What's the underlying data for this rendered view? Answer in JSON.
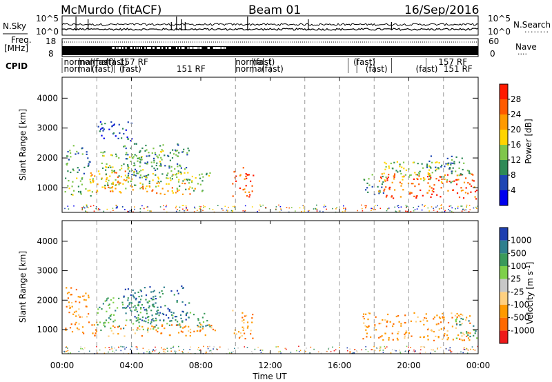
{
  "header": {
    "station": "McMurdo (fitACF)",
    "beam": "Beam 01",
    "date": "16/Sep/2016"
  },
  "left_labels": {
    "nsky": "N.Sky",
    "freq_line1": "Freq.",
    "freq_line2": "[MHz]",
    "cpid": "CPID"
  },
  "right_labels": {
    "nsearch": "N.Search",
    "nave": "Nave"
  },
  "noise_panel": {
    "left_ticks": [
      "10^5",
      "10^0"
    ],
    "right_ticks": [
      "10^5",
      "10^0"
    ]
  },
  "freq_panel": {
    "left_ticks": [
      "18",
      "8"
    ],
    "right_ticks": [
      "60",
      "0"
    ]
  },
  "cpid_labels": {
    "row1": [
      {
        "text": "normal",
        "t": 0.1
      },
      {
        "text": "normal",
        "t": 1.0
      },
      {
        "text": "(fast)",
        "t": 1.75
      },
      {
        "text": "(fast)",
        "t": 2.5
      },
      {
        "text": "157 RF",
        "t": 3.3
      },
      {
        "text": "normal",
        "t": 10.0
      },
      {
        "text": "(fast)",
        "t": 11.0
      },
      {
        "text": "(fast)",
        "t": 16.8
      },
      {
        "text": "157 RF",
        "t": 21.7
      }
    ],
    "row2": [
      {
        "text": "normal",
        "t": 0.1
      },
      {
        "text": "(fast)",
        "t": 1.7
      },
      {
        "text": "(fast)",
        "t": 3.3
      },
      {
        "text": "151 RF",
        "t": 6.6
      },
      {
        "text": "normal",
        "t": 10.0
      },
      {
        "text": "(fast)",
        "t": 11.5
      },
      {
        "text": "(fast)",
        "t": 17.5
      },
      {
        "text": "(fast)",
        "t": 20.4
      },
      {
        "text": "151 RF",
        "t": 22.0
      }
    ]
  },
  "chart_data": [
    {
      "type": "heatmap",
      "name": "power",
      "xlabel": "Time UT",
      "ylabel": "Slant Range [km]",
      "xlim": [
        0,
        24
      ],
      "ylim": [
        180,
        4700
      ],
      "yticks": [
        1000,
        2000,
        3000,
        4000
      ],
      "dashed_vlines": [
        2,
        4,
        10,
        14,
        16,
        18,
        20,
        22
      ],
      "colorbar": {
        "label": "Power [dB]",
        "tick_labels": [
          "4",
          "8",
          "12",
          "16",
          "20",
          "24",
          "28"
        ],
        "colors": [
          "#0000ee",
          "#1e46b4",
          "#2e8a56",
          "#7fc64a",
          "#ffd400",
          "#ff9a00",
          "#ff5a00",
          "#ff1a00"
        ]
      },
      "echo_regions": [
        {
          "t0": 0.1,
          "t1": 1.8,
          "r0": 750,
          "r1": 1400,
          "level": 3
        },
        {
          "t0": 0.2,
          "t1": 1.6,
          "r0": 1500,
          "r1": 2500,
          "level": 2
        },
        {
          "t0": 1.5,
          "t1": 4.2,
          "r0": 850,
          "r1": 1600,
          "level": 5
        },
        {
          "t0": 2.2,
          "t1": 5.8,
          "r0": 1000,
          "r1": 2300,
          "level": 3
        },
        {
          "t0": 3.5,
          "t1": 7.3,
          "r0": 1300,
          "r1": 2500,
          "level": 2
        },
        {
          "t0": 4.5,
          "t1": 7.8,
          "r0": 800,
          "r1": 1200,
          "level": 5
        },
        {
          "t0": 6.0,
          "t1": 8.5,
          "r0": 900,
          "r1": 1600,
          "level": 3
        },
        {
          "t0": 2.0,
          "t1": 4.0,
          "r0": 2600,
          "r1": 3300,
          "level": 1
        },
        {
          "t0": 9.8,
          "t1": 11.0,
          "r0": 700,
          "r1": 1700,
          "level": 6
        },
        {
          "t0": 17.3,
          "t1": 18.5,
          "r0": 800,
          "r1": 1500,
          "level": 2
        },
        {
          "t0": 18.2,
          "t1": 23.9,
          "r0": 650,
          "r1": 1500,
          "level": 6
        },
        {
          "t0": 18.5,
          "t1": 22.5,
          "r0": 1200,
          "r1": 1900,
          "level": 3
        },
        {
          "t0": 21.0,
          "t1": 23.5,
          "r0": 1400,
          "r1": 2100,
          "level": 2
        }
      ]
    },
    {
      "type": "heatmap",
      "name": "velocity",
      "xlabel": "Time UT",
      "ylabel": "Slant Range [km]",
      "xlim": [
        0,
        24
      ],
      "ylim": [
        180,
        4700
      ],
      "yticks": [
        1000,
        2000,
        3000,
        4000
      ],
      "xtick_labels": [
        "00:00",
        "04:00",
        "08:00",
        "12:00",
        "16:00",
        "20:00",
        "00:00"
      ],
      "xticks": [
        0,
        4,
        8,
        12,
        16,
        20,
        24
      ],
      "dashed_vlines": [
        2,
        4,
        10,
        14,
        16,
        18,
        20,
        22
      ],
      "colorbar": {
        "label": "Velocity [m s^-1]",
        "tick_labels": [
          "1000",
          "500",
          "100",
          "25",
          "-25",
          "-100",
          "-500",
          "-1000"
        ],
        "colors": [
          "#1e3fb0",
          "#2f7f8e",
          "#3a9a5a",
          "#7ed04a",
          "#c8c8c8",
          "#ffd080",
          "#ff9a00",
          "#ff6a00",
          "#ee1a1a"
        ]
      },
      "echo_regions": [
        {
          "t0": 0.1,
          "t1": 2.0,
          "r0": 800,
          "r1": 1300,
          "level": 6
        },
        {
          "t0": 0.2,
          "t1": 1.6,
          "r0": 1400,
          "r1": 2500,
          "level": 6
        },
        {
          "t0": 2.0,
          "t1": 5.5,
          "r0": 1000,
          "r1": 2100,
          "level": 2
        },
        {
          "t0": 3.5,
          "t1": 7.3,
          "r0": 1300,
          "r1": 2500,
          "level": 1
        },
        {
          "t0": 2.5,
          "t1": 8.8,
          "r0": 800,
          "r1": 1200,
          "level": 6
        },
        {
          "t0": 6.0,
          "t1": 8.5,
          "r0": 1100,
          "r1": 1600,
          "level": 2
        },
        {
          "t0": 9.8,
          "t1": 11.0,
          "r0": 700,
          "r1": 1700,
          "level": 6
        },
        {
          "t0": 17.3,
          "t1": 23.5,
          "r0": 650,
          "r1": 1600,
          "level": 6
        },
        {
          "t0": 22.5,
          "t1": 23.9,
          "r0": 700,
          "r1": 1400,
          "level": 2
        }
      ]
    }
  ]
}
